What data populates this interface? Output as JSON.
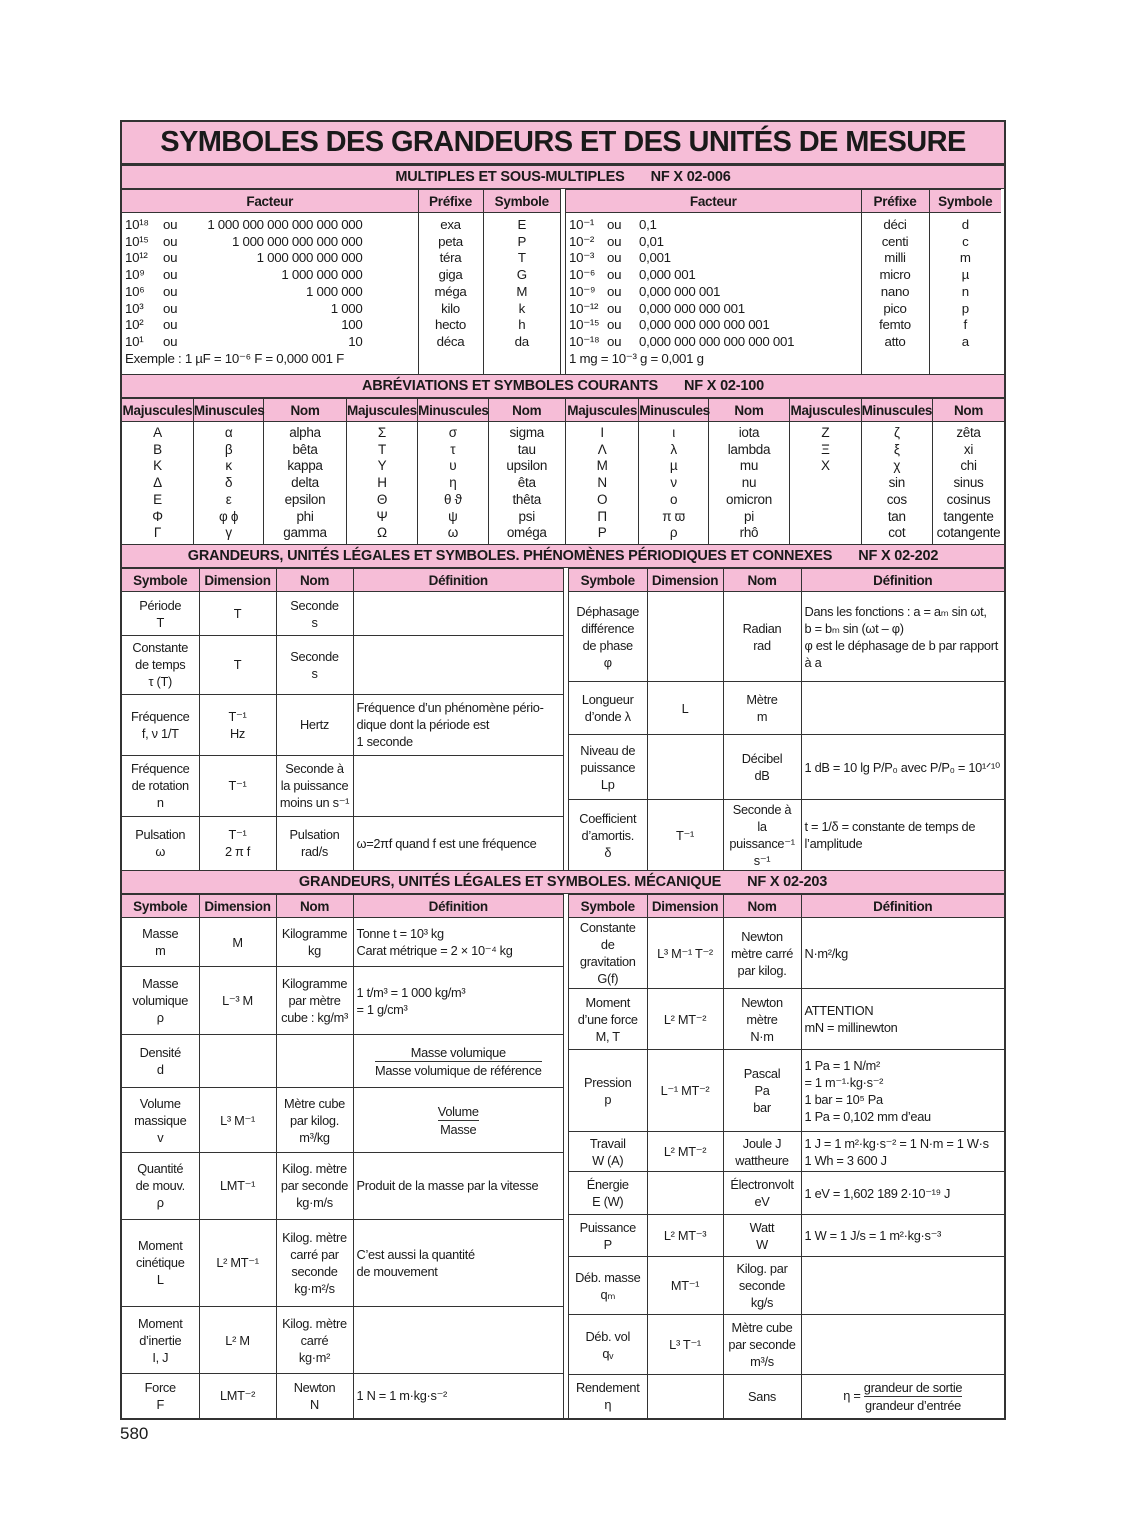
{
  "title": "SYMBOLES DES GRANDEURS ET DES UNITÉS DE MESURE",
  "page_number": "580",
  "colors": {
    "header_pink": "#f6bdd7",
    "border": "#333333"
  },
  "multiples": {
    "title": "MULTIPLES ET SOUS-MULTIPLES",
    "norm": "NF X 02-006",
    "columns": [
      "Facteur",
      "Préfixe",
      "Symbole"
    ],
    "left": {
      "rows": [
        {
          "power": "10¹⁸",
          "ou": "ou",
          "value": "1 000 000 000 000 000 000",
          "prefix": "exa",
          "symbol": "E"
        },
        {
          "power": "10¹⁵",
          "ou": "ou",
          "value": "1 000 000 000 000 000",
          "prefix": "peta",
          "symbol": "P"
        },
        {
          "power": "10¹²",
          "ou": "ou",
          "value": "1 000 000 000 000",
          "prefix": "téra",
          "symbol": "T"
        },
        {
          "power": "10⁹",
          "ou": "ou",
          "value": "1 000 000 000",
          "prefix": "giga",
          "symbol": "G"
        },
        {
          "power": "10⁶",
          "ou": "ou",
          "value": "1 000 000",
          "prefix": "méga",
          "symbol": "M"
        },
        {
          "power": "10³",
          "ou": "ou",
          "value": "1 000",
          "prefix": "kilo",
          "symbol": "k"
        },
        {
          "power": "10²",
          "ou": "ou",
          "value": "100",
          "prefix": "hecto",
          "symbol": "h"
        },
        {
          "power": "10¹",
          "ou": "ou",
          "value": "10",
          "prefix": "déca",
          "symbol": "da"
        }
      ],
      "example": "Exemple : 1 µF = 10⁻⁶ F = 0,000 001 F"
    },
    "right": {
      "rows": [
        {
          "power": "10⁻¹",
          "ou": "ou",
          "value": "0,1",
          "prefix": "déci",
          "symbol": "d"
        },
        {
          "power": "10⁻²",
          "ou": "ou",
          "value": "0,01",
          "prefix": "centi",
          "symbol": "c"
        },
        {
          "power": "10⁻³",
          "ou": "ou",
          "value": "0,001",
          "prefix": "milli",
          "symbol": "m"
        },
        {
          "power": "10⁻⁶",
          "ou": "ou",
          "value": "0,000 001",
          "prefix": "micro",
          "symbol": "µ"
        },
        {
          "power": "10⁻⁹",
          "ou": "ou",
          "value": "0,000 000 001",
          "prefix": "nano",
          "symbol": "n"
        },
        {
          "power": "10⁻¹²",
          "ou": "ou",
          "value": "0,000 000 000 001",
          "prefix": "pico",
          "symbol": "p"
        },
        {
          "power": "10⁻¹⁵",
          "ou": "ou",
          "value": "0,000 000 000 000 001",
          "prefix": "femto",
          "symbol": "f"
        },
        {
          "power": "10⁻¹⁸",
          "ou": "ou",
          "value": "0,000 000 000 000 000 001",
          "prefix": "atto",
          "symbol": "a"
        }
      ],
      "example": "1 mg = 10⁻³ g = 0,001 g"
    }
  },
  "abbreviations": {
    "title": "ABRÉVIATIONS ET SYMBOLES COURANTS",
    "norm": "NF X 02-100",
    "columns": [
      "Majuscules",
      "Minuscules",
      "Nom"
    ],
    "groups": [
      {
        "upper": "Α\nΒ\nΚ\nΔ\nΕ\nΦ\nΓ",
        "lower": "α\nβ\nκ\nδ\nε\nφ ϕ\nγ",
        "name": "alpha\nbêta\nkappa\ndelta\nepsilon\nphi\ngamma"
      },
      {
        "upper": "Σ\nΤ\nΥ\nΗ\nΘ\nΨ\nΩ",
        "lower": "σ\nτ\nυ\nη\nθ ϑ\nψ\nω",
        "name": "sigma\ntau\nupsilon\nêta\nthêta\npsi\noméga"
      },
      {
        "upper": "Ι\nΛ\nΜ\nΝ\nΟ\nΠ\nΡ",
        "lower": "ι\nλ\nµ\nν\nο\nπ ϖ\nρ",
        "name": "iota\nlambda\nmu\nnu\nomicron\npi\nrhô"
      },
      {
        "upper": "Ζ\nΞ\nΧ",
        "lower": "ζ\nξ\nχ\nsin\ncos\ntan\ncot",
        "name": "zêta\nxi\nchi\nsinus\ncosinus\ntangente\ncotangente"
      }
    ]
  },
  "periodic": {
    "title": "GRANDEURS, UNITÉS LÉGALES ET SYMBOLES. PHÉNOMÈNES PÉRIODIQUES ET CONNEXES",
    "norm": "NF X 02-202",
    "columns": [
      "Symbole",
      "Dimension",
      "Nom",
      "Définition"
    ],
    "left": [
      [
        "Période\nT",
        "T",
        "Seconde\ns",
        ""
      ],
      [
        "Constante\nde temps\nτ (T)",
        "T",
        "Seconde\ns",
        ""
      ],
      [
        "Fréquence\nf, ν  1/T",
        "T⁻¹\nHz",
        "Hertz",
        "Fréquence d’un phénomène pério-\ndique dont la période est\n1 seconde"
      ],
      [
        "Fréquence\nde rotation\nn",
        "T⁻¹",
        "Seconde à\nla puissance\nmoins un s⁻¹",
        ""
      ],
      [
        "Pulsation\nω",
        "T⁻¹\n2 π f",
        "Pulsation\nrad/s",
        "ω=2πf quand f est une fréquence"
      ]
    ],
    "right": [
      [
        "Déphasage\ndifférence\nde phase\nφ",
        "",
        "Radian\nrad",
        "Dans les fonctions : a = aₘ sin ωt,\nb = bₘ sin (ωt – φ)\nφ est le déphasage de b par rapport\nà a"
      ],
      [
        "Longueur\nd’onde λ",
        "L",
        "Mètre\nm",
        ""
      ],
      [
        "Niveau de\npuissance\nLp",
        "",
        "Décibel\ndB",
        "1 dB = 10 lg P/P₀ avec P/P₀ = 10¹ᐟ¹⁰"
      ],
      [
        "Coefficient\nd’amortis.\nδ",
        "T⁻¹",
        "Seconde à la\npuissance⁻¹\ns⁻¹",
        "t = 1/δ = constante de temps de\nl’amplitude"
      ]
    ]
  },
  "mechanics": {
    "title": "GRANDEURS, UNITÉS LÉGALES ET SYMBOLES. MÉCANIQUE",
    "norm": "NF X 02-203",
    "columns": [
      "Symbole",
      "Dimension",
      "Nom",
      "Définition"
    ],
    "left": [
      [
        "Masse\nm",
        "M",
        "Kilogramme\nkg",
        "Tonne t = 10³ kg\nCarat métrique = 2 × 10⁻⁴ kg"
      ],
      [
        "Masse\nvolumique\nρ",
        "L⁻³ M",
        "Kilogramme\npar mètre\ncube : kg/m³",
        "1 t/m³ = 1 000 kg/m³\n        = 1 g/cm³"
      ],
      [
        "Densité\nd",
        "",
        "",
        {
          "num": "Masse volumique",
          "den": "Masse volumique de référence"
        }
      ],
      [
        "Volume\nmassique\nv",
        "L³ M⁻¹",
        "Mètre cube\npar kilog.\nm³/kg",
        {
          "num": "Volume",
          "den": "Masse"
        }
      ],
      [
        "Quantité\nde mouv.\nρ",
        "LMT⁻¹",
        "Kilog. mètre\npar seconde\nkg·m/s",
        "Produit de la masse par la vitesse"
      ],
      [
        "Moment\ncinétique\nL",
        "L² MT⁻¹",
        "Kilog. mètre\ncarré par\nseconde\nkg·m²/s",
        "C’est aussi la quantité\nde mouvement"
      ],
      [
        "Moment\nd’inertie\nI, J",
        "L² M",
        "Kilog. mètre\ncarré\nkg·m²",
        ""
      ],
      [
        "Force\nF",
        "LMT⁻²",
        "Newton\nN",
        "1 N = 1 m·kg·s⁻²"
      ]
    ],
    "right": [
      [
        "Constante de\ngravitation\nG(f)",
        "L³ M⁻¹ T⁻²",
        "Newton\nmètre carré\npar kilog.",
        "N·m²/kg"
      ],
      [
        "Moment\nd’une force\nM, T",
        "L² MT⁻²",
        "Newton\nmètre\nN·m",
        "ATTENTION\nmN = millinewton"
      ],
      [
        "Pression\np",
        "L⁻¹ MT⁻²",
        "Pascal\nPa\nbar",
        "1 Pa = 1 N/m²\n      = 1 m⁻¹·kg·s⁻²\n1 bar = 10⁵ Pa\n1 Pa = 0,102 mm d’eau"
      ],
      [
        "Travail\nW (A)",
        "L² MT⁻²",
        "Joule J\nwattheure",
        "1 J = 1 m²·kg·s⁻² = 1 N·m = 1 W·s\n1 Wh = 3 600 J"
      ],
      [
        "Énergie\nE (W)",
        "",
        "Électronvolt\neV",
        "1 eV = 1,602 189 2·10⁻¹⁹ J"
      ],
      [
        "Puissance\nP",
        "L² MT⁻³",
        "Watt\nW",
        "1 W = 1 J/s = 1 m²·kg·s⁻³"
      ],
      [
        "Déb. masse\nqₘ",
        "MT⁻¹",
        "Kilog. par\nseconde\nkg/s",
        ""
      ],
      [
        "Déb. vol\nqᵥ",
        "L³ T⁻¹",
        "Mètre cube\npar seconde\nm³/s",
        ""
      ],
      [
        "Rendement\nη",
        "",
        "Sans",
        {
          "pre": "η =",
          "num": "grandeur de sortie",
          "den": "grandeur d’entrée"
        }
      ]
    ]
  }
}
